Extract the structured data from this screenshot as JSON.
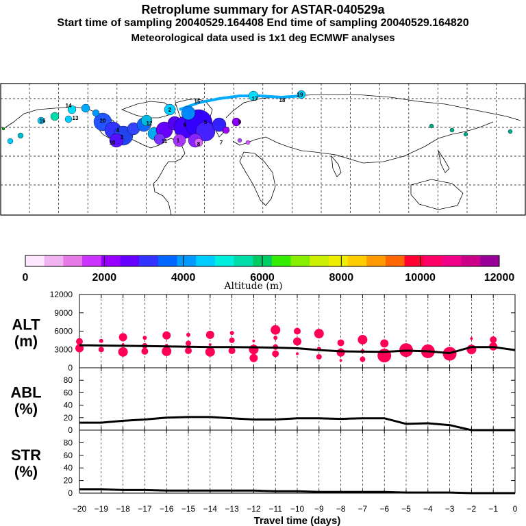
{
  "header": {
    "title": "Retroplume summary for ASTAR-040529a",
    "subtitle": "Start time of sampling 20040529.164408     End time of sampling 20040529.164820",
    "met_line": "Meteorological data used is 1x1 deg ECMWF analyses"
  },
  "colorbar": {
    "title": "Altitude (m)",
    "tick_labels": [
      "0",
      "2000",
      "4000",
      "6000",
      "8000",
      "10000",
      "12000"
    ],
    "colors": [
      "#ffe6ff",
      "#f2b3f2",
      "#e67ae6",
      "#cc33ff",
      "#9900ff",
      "#6600ff",
      "#3333ff",
      "#0066ff",
      "#0099ff",
      "#00ccff",
      "#00eedd",
      "#00ddaa",
      "#00cc66",
      "#33ee00",
      "#88ee00",
      "#ccee00",
      "#eeee00",
      "#ffcc00",
      "#ff9900",
      "#ff6600",
      "#ff0033",
      "#ff0066",
      "#ee0088",
      "#cc0088",
      "#990099"
    ]
  },
  "map": {
    "plume_labels": [
      "1",
      "2",
      "3",
      "4",
      "5",
      "6",
      "7",
      "8",
      "9",
      "10",
      "11",
      "12",
      "13",
      "14",
      "15",
      "16",
      "17",
      "18",
      "19",
      "20"
    ]
  },
  "chart_data": [
    {
      "type": "line",
      "panel": "ALT",
      "ylabel": "ALT\n(m)",
      "ylabel_lines": [
        "ALT",
        "(m)"
      ],
      "ylim": [
        0,
        12000
      ],
      "yticks": [
        "0",
        "3000",
        "6000",
        "9000",
        "12000"
      ],
      "x": [
        -20,
        -19,
        -18,
        -17,
        -16,
        -15,
        -14,
        -13,
        -12,
        -11,
        -10,
        -9,
        -8,
        -7,
        -6,
        -5,
        -4,
        -3,
        -2,
        -1,
        0
      ],
      "series": [
        {
          "name": "mean altitude",
          "values": [
            3700,
            3650,
            3600,
            3550,
            3500,
            3450,
            3400,
            3400,
            3350,
            3300,
            3200,
            2900,
            2700,
            2650,
            2600,
            2800,
            2700,
            2400,
            3400,
            3400,
            2900
          ]
        }
      ],
      "markers": [
        {
          "x": -20,
          "y": 3200
        },
        {
          "x": -20,
          "y": 4300
        },
        {
          "x": -19,
          "y": 3000
        },
        {
          "x": -19,
          "y": 4400
        },
        {
          "x": -18,
          "y": 2600
        },
        {
          "x": -18,
          "y": 3800
        },
        {
          "x": -18,
          "y": 5000
        },
        {
          "x": -17,
          "y": 2700
        },
        {
          "x": -17,
          "y": 3600
        },
        {
          "x": -17,
          "y": 4900
        },
        {
          "x": -16,
          "y": 2700
        },
        {
          "x": -16,
          "y": 3700
        },
        {
          "x": -16,
          "y": 5300
        },
        {
          "x": -15,
          "y": 2800
        },
        {
          "x": -15,
          "y": 4000
        },
        {
          "x": -15,
          "y": 5400
        },
        {
          "x": -14,
          "y": 2600
        },
        {
          "x": -14,
          "y": 3800
        },
        {
          "x": -14,
          "y": 5400
        },
        {
          "x": -13,
          "y": 2800
        },
        {
          "x": -13,
          "y": 4500
        },
        {
          "x": -13,
          "y": 5700
        },
        {
          "x": -12,
          "y": 3000
        },
        {
          "x": -12,
          "y": 4400
        },
        {
          "x": -12,
          "y": 1600
        },
        {
          "x": -11,
          "y": 2300
        },
        {
          "x": -11,
          "y": 3400
        },
        {
          "x": -11,
          "y": 4900
        },
        {
          "x": -11,
          "y": 6200
        },
        {
          "x": -10,
          "y": 2300
        },
        {
          "x": -10,
          "y": 4300
        },
        {
          "x": -10,
          "y": 6000
        },
        {
          "x": -9,
          "y": 1800
        },
        {
          "x": -9,
          "y": 3100
        },
        {
          "x": -9,
          "y": 5600
        },
        {
          "x": -8,
          "y": 1200
        },
        {
          "x": -8,
          "y": 2500
        },
        {
          "x": -8,
          "y": 4100
        },
        {
          "x": -7,
          "y": 1400
        },
        {
          "x": -7,
          "y": 2700
        },
        {
          "x": -7,
          "y": 4600
        },
        {
          "x": -6,
          "y": 2000
        },
        {
          "x": -6,
          "y": 4000
        },
        {
          "x": -5,
          "y": 2900
        },
        {
          "x": -4,
          "y": 2700
        },
        {
          "x": -3,
          "y": 2300
        },
        {
          "x": -2,
          "y": 3000
        },
        {
          "x": -2,
          "y": 4800
        },
        {
          "x": -1,
          "y": 3500
        },
        {
          "x": -1,
          "y": 4600
        }
      ]
    },
    {
      "type": "line",
      "panel": "ABL",
      "ylabel_lines": [
        "ABL",
        "(%)"
      ],
      "ylim": [
        0,
        100
      ],
      "yticks": [
        "0",
        "20",
        "40",
        "60",
        "80"
      ],
      "x": [
        -20,
        -19,
        -18,
        -17,
        -16,
        -15,
        -14,
        -13,
        -12,
        -11,
        -10,
        -9,
        -8,
        -7,
        -6,
        -5,
        -4,
        -3,
        -2,
        -1,
        0
      ],
      "series": [
        {
          "name": "ABL fraction",
          "values": [
            12,
            12,
            15,
            17,
            20,
            21,
            21,
            19,
            17,
            17,
            19,
            19,
            18,
            19,
            19,
            10,
            11,
            8,
            0,
            0,
            0
          ]
        }
      ]
    },
    {
      "type": "line",
      "panel": "STR",
      "ylabel_lines": [
        "STR",
        "(%)"
      ],
      "ylim": [
        0,
        100
      ],
      "yticks": [
        "0",
        "20",
        "40",
        "60",
        "80"
      ],
      "x": [
        -20,
        -19,
        -18,
        -17,
        -16,
        -15,
        -14,
        -13,
        -12,
        -11,
        -10,
        -9,
        -8,
        -7,
        -6,
        -5,
        -4,
        -3,
        -2,
        -1,
        0
      ],
      "series": [
        {
          "name": "stratospheric fraction",
          "values": [
            6,
            6,
            5,
            5,
            4,
            4,
            4,
            4,
            4,
            3,
            3,
            2,
            2,
            2,
            2,
            1,
            1,
            1,
            0,
            0,
            0
          ]
        }
      ],
      "xlabel": "Travel time (days)",
      "xticks": [
        "−20",
        "−19",
        "−18",
        "−17",
        "−16",
        "−15",
        "−14",
        "−13",
        "−12",
        "−11",
        "−10",
        "−9",
        "−8",
        "−7",
        "−6",
        "−5",
        "−4",
        "−3",
        "−2",
        "−1",
        "0"
      ]
    }
  ]
}
